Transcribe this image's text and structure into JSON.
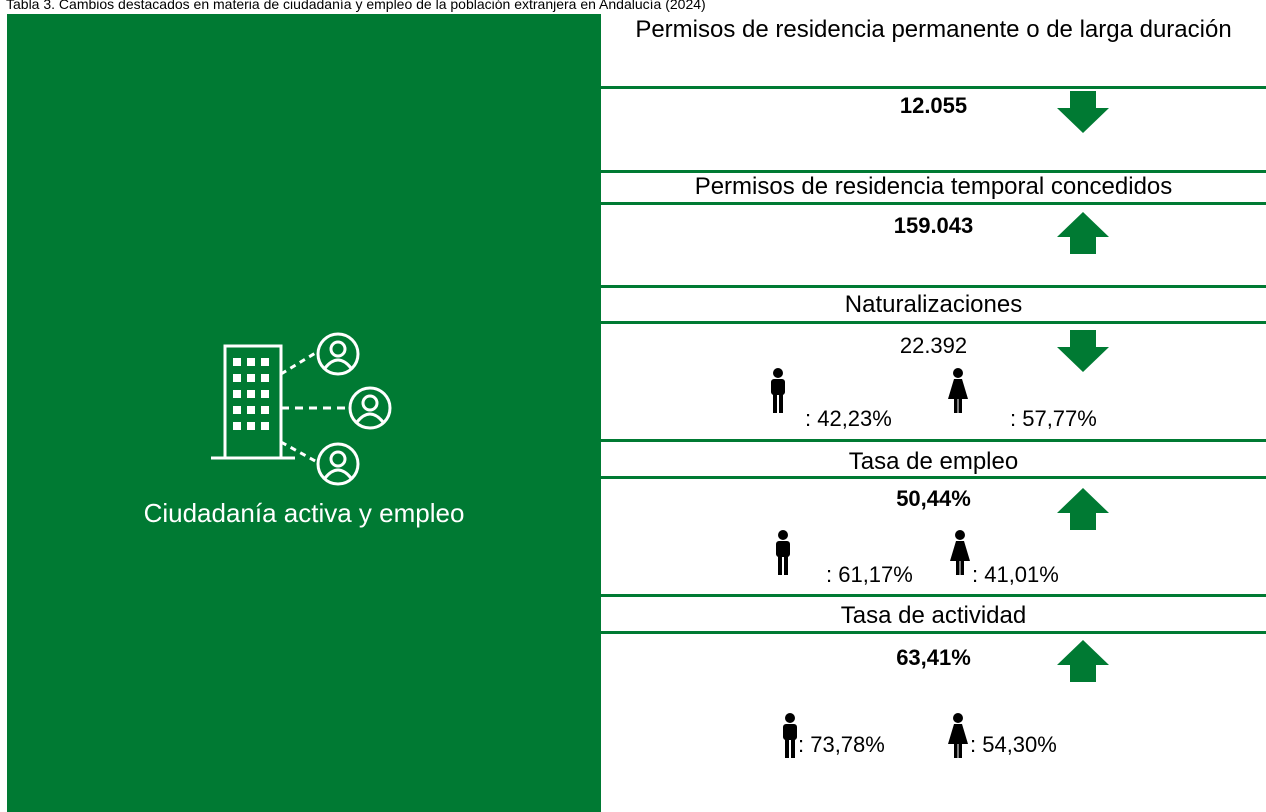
{
  "title": "Tabla 3. Cambios destacados en materia de ciudadanía y empleo de la población extranjera en Andalucía (2024)",
  "left_panel": {
    "label": "Ciudadanía activa y empleo"
  },
  "sections": [
    {
      "heading": "Permisos de residencia permanente o de larga duración",
      "value": "12.055",
      "trend": "down"
    },
    {
      "heading": "Permisos de residencia temporal concedidos",
      "value": "159.043",
      "trend": "up"
    },
    {
      "heading": "Naturalizaciones",
      "value": "22.392",
      "trend": "down",
      "men": ": 42,23%",
      "women": ": 57,77%"
    },
    {
      "heading": "Tasa de empleo",
      "value": "50,44%",
      "trend": "up",
      "men": ": 61,17%",
      "women": ": 41,01%"
    },
    {
      "heading": "Tasa de actividad",
      "value": "63,41%",
      "trend": "up",
      "men": ": 73,78%",
      "women": ": 54,30%"
    }
  ]
}
